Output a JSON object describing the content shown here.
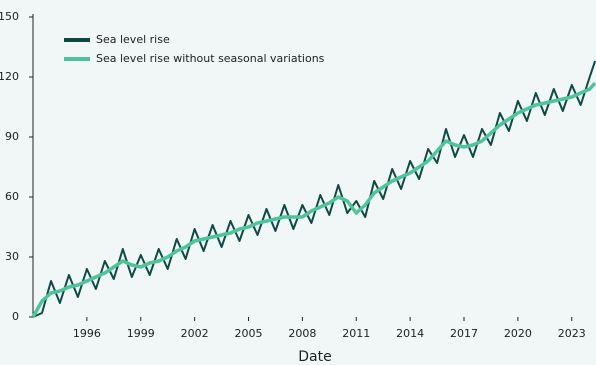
{
  "chart_data": {
    "type": "line",
    "x_label": "Date",
    "x": [
      1993.0,
      1993.5,
      1994.0,
      1994.5,
      1995.0,
      1995.5,
      1996.0,
      1996.5,
      1997.0,
      1997.5,
      1998.0,
      1998.5,
      1999.0,
      1999.5,
      2000.0,
      2000.5,
      2001.0,
      2001.5,
      2002.0,
      2002.5,
      2003.0,
      2003.5,
      2004.0,
      2004.5,
      2005.0,
      2005.5,
      2006.0,
      2006.5,
      2007.0,
      2007.5,
      2008.0,
      2008.5,
      2009.0,
      2009.5,
      2010.0,
      2010.5,
      2011.0,
      2011.5,
      2012.0,
      2012.5,
      2013.0,
      2013.5,
      2014.0,
      2014.5,
      2015.0,
      2015.5,
      2016.0,
      2016.5,
      2017.0,
      2017.5,
      2018.0,
      2018.5,
      2019.0,
      2019.5,
      2020.0,
      2020.5,
      2021.0,
      2021.5,
      2022.0,
      2022.5,
      2023.0,
      2023.5,
      2024.0,
      2024.3
    ],
    "series": [
      {
        "name": "Sea level rise",
        "color": "#0f4a42",
        "width": 2,
        "values": [
          0,
          2,
          18,
          7,
          21,
          10,
          24,
          14,
          28,
          19,
          34,
          20,
          31,
          21,
          34,
          24,
          39,
          29,
          44,
          33,
          46,
          35,
          48,
          38,
          51,
          41,
          54,
          43,
          56,
          44,
          56,
          47,
          61,
          51,
          66,
          52,
          58,
          50,
          68,
          59,
          74,
          64,
          78,
          69,
          84,
          77,
          94,
          80,
          91,
          80,
          94,
          86,
          102,
          93,
          108,
          98,
          112,
          101,
          114,
          103,
          116,
          106,
          120,
          128
        ]
      },
      {
        "name": "Sea level rise without seasonal variations",
        "color": "#4fc49b",
        "width": 3.5,
        "values": [
          0,
          8,
          12,
          13,
          15,
          16,
          18,
          20,
          22,
          25,
          28,
          26,
          25,
          27,
          28,
          30,
          33,
          35,
          38,
          39,
          40,
          41,
          42,
          44,
          45,
          47,
          48,
          49,
          50,
          50,
          50,
          53,
          55,
          57,
          60,
          58,
          52,
          56,
          62,
          65,
          68,
          70,
          72,
          75,
          78,
          83,
          88,
          86,
          85,
          86,
          88,
          92,
          96,
          99,
          102,
          104,
          106,
          107,
          108,
          109,
          110,
          112,
          114,
          117
        ]
      }
    ],
    "xlim": [
      1993,
      2024.35
    ],
    "xticks": [
      1996,
      1999,
      2002,
      2005,
      2008,
      2011,
      2014,
      2017,
      2020,
      2023
    ],
    "ylim": [
      0,
      150
    ],
    "yticks": [
      0,
      30,
      60,
      90,
      120,
      150
    ],
    "legend": "upper-left"
  }
}
